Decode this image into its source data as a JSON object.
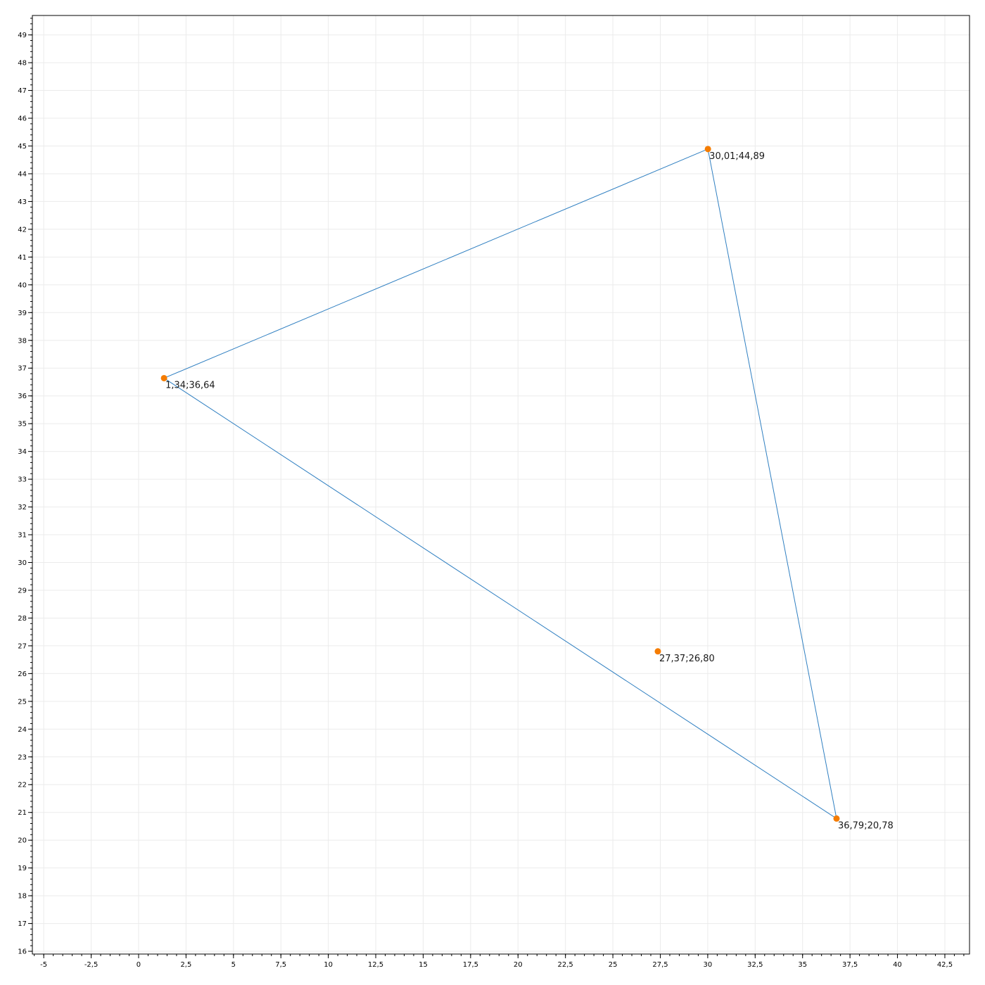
{
  "chart_data": {
    "type": "scatter",
    "title": "",
    "xlabel": "",
    "ylabel": "",
    "xlim": [
      -5.6,
      43.8
    ],
    "ylim": [
      15.9,
      49.7
    ],
    "grid": true,
    "legend": "none",
    "x_ticks": {
      "step": 2.5,
      "minor_step": 0.5,
      "values": [
        -5,
        -2.5,
        0,
        2.5,
        5,
        7.5,
        10,
        12.5,
        15,
        17.5,
        20,
        22.5,
        25,
        27.5,
        30,
        32.5,
        35,
        37.5,
        40,
        42.5
      ],
      "labels": [
        "-5",
        "-2,5",
        "0",
        "2,5",
        "5",
        "7,5",
        "10",
        "12,5",
        "15",
        "17,5",
        "20",
        "22,5",
        "25",
        "27,5",
        "30",
        "32,5",
        "35",
        "37,5",
        "40",
        "42,5"
      ]
    },
    "y_ticks": {
      "step": 1,
      "minor_step": 0.2,
      "values": [
        16,
        17,
        18,
        19,
        20,
        21,
        22,
        23,
        24,
        25,
        26,
        27,
        28,
        29,
        30,
        31,
        32,
        33,
        34,
        35,
        36,
        37,
        38,
        39,
        40,
        41,
        42,
        43,
        44,
        45,
        46,
        47,
        48,
        49
      ],
      "labels": [
        "16",
        "17",
        "18",
        "19",
        "20",
        "21",
        "22",
        "23",
        "24",
        "25",
        "26",
        "27",
        "28",
        "29",
        "30",
        "31",
        "32",
        "33",
        "34",
        "35",
        "36",
        "37",
        "38",
        "39",
        "40",
        "41",
        "42",
        "43",
        "44",
        "45",
        "46",
        "47",
        "48",
        "49"
      ]
    },
    "series": [
      {
        "kind": "polygon",
        "color": "#2f7fc1",
        "points": [
          {
            "x": 1.34,
            "y": 36.64
          },
          {
            "x": 30.01,
            "y": 44.89
          },
          {
            "x": 36.79,
            "y": 20.78
          }
        ]
      },
      {
        "kind": "points",
        "color": "#f57c00",
        "points": [
          {
            "x": 1.34,
            "y": 36.64,
            "label": "1,34;36,64"
          },
          {
            "x": 30.01,
            "y": 44.89,
            "label": "30,01;44,89"
          },
          {
            "x": 36.79,
            "y": 20.78,
            "label": "36,79;20,78"
          },
          {
            "x": 27.37,
            "y": 26.8,
            "label": "27,37;26,80"
          }
        ]
      }
    ],
    "colors": {
      "grid": "#ebebeb",
      "axis": "#000000",
      "background": "#ffffff"
    }
  }
}
